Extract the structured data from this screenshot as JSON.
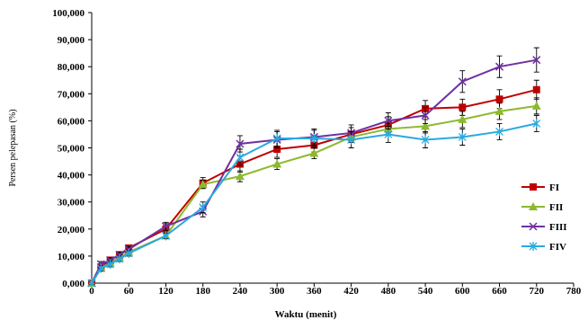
{
  "chart_data": {
    "type": "line",
    "xlabel": "Waktu (menit)",
    "ylabel": "Persen pelepasan (%)",
    "xlim": [
      0,
      780
    ],
    "ylim": [
      0,
      100
    ],
    "x_ticks": [
      0,
      60,
      120,
      180,
      240,
      300,
      360,
      420,
      480,
      540,
      600,
      660,
      720,
      780
    ],
    "x_tick_labels": [
      "0",
      "60",
      "120",
      "180",
      "240",
      "300",
      "360",
      "420",
      "480",
      "540",
      "600",
      "660",
      "720",
      "780"
    ],
    "y_ticks": [
      0,
      10,
      20,
      30,
      40,
      50,
      60,
      70,
      80,
      90,
      100
    ],
    "y_tick_labels": [
      "0,000",
      "10,000",
      "20,000",
      "30,000",
      "40,000",
      "50,000",
      "60,000",
      "70,000",
      "80,000",
      "90,000",
      "100,000"
    ],
    "grid": false,
    "legend_position": "right",
    "x": [
      0,
      15,
      30,
      45,
      60,
      120,
      180,
      240,
      300,
      360,
      420,
      480,
      540,
      600,
      660,
      720
    ],
    "series": [
      {
        "name": "FI",
        "color": "#c00000",
        "marker": "square",
        "values": [
          0,
          6,
          8.5,
          10.5,
          13,
          20,
          37,
          44,
          49.5,
          51,
          55,
          58.5,
          64.5,
          65,
          68,
          71.5
        ],
        "errors": [
          0.5,
          1,
          1,
          1,
          1,
          2,
          2,
          3,
          3,
          2.5,
          2.5,
          3,
          3,
          3,
          3.5,
          3.5
        ]
      },
      {
        "name": "FII",
        "color": "#8db92e",
        "marker": "triangle",
        "values": [
          0,
          5.5,
          7.5,
          9.5,
          11.5,
          17.5,
          36.5,
          39.5,
          44,
          48,
          54,
          57,
          58,
          60.5,
          63.5,
          65.5
        ],
        "errors": [
          0.5,
          1,
          1,
          1,
          1,
          1,
          1.5,
          2,
          2,
          2,
          2,
          2,
          2.5,
          3,
          3,
          3
        ]
      },
      {
        "name": "FIII",
        "color": "#7030a0",
        "marker": "x",
        "values": [
          0,
          7,
          8.5,
          10.5,
          12.5,
          21,
          26.5,
          51.5,
          53,
          54,
          55.5,
          60,
          62,
          74.5,
          80,
          82.5
        ],
        "errors": [
          0.5,
          1,
          1,
          1,
          1,
          1.5,
          2,
          3,
          3,
          3,
          3,
          3,
          3,
          4,
          4,
          4.5
        ]
      },
      {
        "name": "FIV",
        "color": "#29a9e0",
        "marker": "star",
        "values": [
          0,
          5.5,
          7,
          9,
          11,
          17.5,
          28,
          46.5,
          53.5,
          53.5,
          53,
          55,
          53,
          54,
          56,
          59
        ],
        "errors": [
          0.5,
          1,
          1,
          1,
          1,
          1,
          2,
          3,
          3,
          3,
          3,
          3,
          3,
          3,
          3,
          3
        ]
      }
    ]
  }
}
